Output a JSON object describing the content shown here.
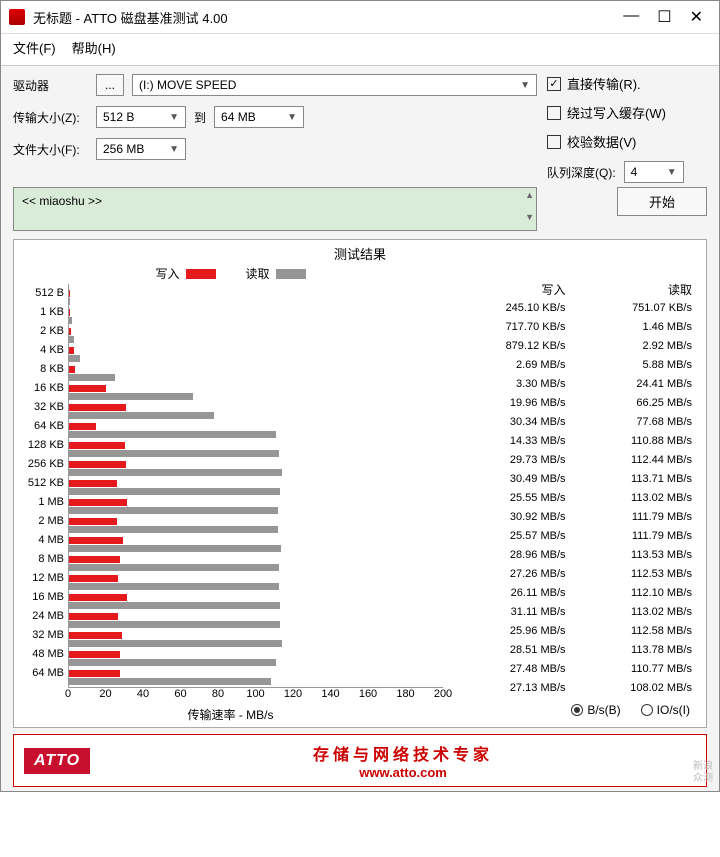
{
  "window": {
    "title": "无标题 - ATTO 磁盘基准测试 4.00"
  },
  "menu": {
    "file": "文件(F)",
    "help": "帮助(H)"
  },
  "config": {
    "drive_label": "驱动器",
    "browse": "...",
    "drive_value": "(I:) MOVE SPEED",
    "transfer_label": "传输大小(Z):",
    "transfer_from": "512 B",
    "transfer_to_label": "到",
    "transfer_to": "64 MB",
    "file_label": "文件大小(F):",
    "file_value": "256 MB",
    "direct": "直接传输(R).",
    "bypass": "绕过写入缓存(W)",
    "verify": "校验数据(V)",
    "queue_label": "队列深度(Q):",
    "queue_value": "4",
    "desc": "<< miaoshu >>",
    "start": "开始"
  },
  "results": {
    "title": "测试结果",
    "write_label": "写入",
    "read_label": "读取",
    "write_col": "写入",
    "read_col": "读取",
    "xlabel": "传输速率 - MB/s",
    "radio_bs": "B/s(B)",
    "radio_ios": "IO/s(I)",
    "write_color": "#e41a1c",
    "read_color": "#969696",
    "xmax": 200,
    "xticks": [
      0,
      20,
      40,
      60,
      80,
      100,
      120,
      140,
      160,
      180,
      200
    ],
    "rows": [
      {
        "label": "512 B",
        "write_txt": "245.10 KB/s",
        "read_txt": "751.07 KB/s",
        "w": 0.24,
        "r": 0.75
      },
      {
        "label": "1 KB",
        "write_txt": "717.70 KB/s",
        "read_txt": "1.46 MB/s",
        "w": 0.72,
        "r": 1.46
      },
      {
        "label": "2 KB",
        "write_txt": "879.12 KB/s",
        "read_txt": "2.92 MB/s",
        "w": 0.88,
        "r": 2.92
      },
      {
        "label": "4 KB",
        "write_txt": "2.69 MB/s",
        "read_txt": "5.88 MB/s",
        "w": 2.69,
        "r": 5.88
      },
      {
        "label": "8 KB",
        "write_txt": "3.30 MB/s",
        "read_txt": "24.41 MB/s",
        "w": 3.3,
        "r": 24.41
      },
      {
        "label": "16 KB",
        "write_txt": "19.96 MB/s",
        "read_txt": "66.25 MB/s",
        "w": 19.96,
        "r": 66.25
      },
      {
        "label": "32 KB",
        "write_txt": "30.34 MB/s",
        "read_txt": "77.68 MB/s",
        "w": 30.34,
        "r": 77.68
      },
      {
        "label": "64 KB",
        "write_txt": "14.33 MB/s",
        "read_txt": "110.88 MB/s",
        "w": 14.33,
        "r": 110.88
      },
      {
        "label": "128 KB",
        "write_txt": "29.73 MB/s",
        "read_txt": "112.44 MB/s",
        "w": 29.73,
        "r": 112.44
      },
      {
        "label": "256 KB",
        "write_txt": "30.49 MB/s",
        "read_txt": "113.71 MB/s",
        "w": 30.49,
        "r": 113.71
      },
      {
        "label": "512 KB",
        "write_txt": "25.55 MB/s",
        "read_txt": "113.02 MB/s",
        "w": 25.55,
        "r": 113.02
      },
      {
        "label": "1 MB",
        "write_txt": "30.92 MB/s",
        "read_txt": "111.79 MB/s",
        "w": 30.92,
        "r": 111.79
      },
      {
        "label": "2 MB",
        "write_txt": "25.57 MB/s",
        "read_txt": "111.79 MB/s",
        "w": 25.57,
        "r": 111.79
      },
      {
        "label": "4 MB",
        "write_txt": "28.96 MB/s",
        "read_txt": "113.53 MB/s",
        "w": 28.96,
        "r": 113.53
      },
      {
        "label": "8 MB",
        "write_txt": "27.26 MB/s",
        "read_txt": "112.53 MB/s",
        "w": 27.26,
        "r": 112.53
      },
      {
        "label": "12 MB",
        "write_txt": "26.11 MB/s",
        "read_txt": "112.10 MB/s",
        "w": 26.11,
        "r": 112.1
      },
      {
        "label": "16 MB",
        "write_txt": "31.11 MB/s",
        "read_txt": "113.02 MB/s",
        "w": 31.11,
        "r": 113.02
      },
      {
        "label": "24 MB",
        "write_txt": "25.96 MB/s",
        "read_txt": "112.58 MB/s",
        "w": 25.96,
        "r": 112.58
      },
      {
        "label": "32 MB",
        "write_txt": "28.51 MB/s",
        "read_txt": "113.78 MB/s",
        "w": 28.51,
        "r": 113.78
      },
      {
        "label": "48 MB",
        "write_txt": "27.48 MB/s",
        "read_txt": "110.77 MB/s",
        "w": 27.48,
        "r": 110.77
      },
      {
        "label": "64 MB",
        "write_txt": "27.13 MB/s",
        "read_txt": "108.02 MB/s",
        "w": 27.13,
        "r": 108.02
      }
    ]
  },
  "footer": {
    "logo": "ATTO",
    "tagline": "存储与网络技术专家",
    "url": "www.atto.com"
  },
  "watermark": {
    "l1": "新浪",
    "l2": "众测"
  }
}
